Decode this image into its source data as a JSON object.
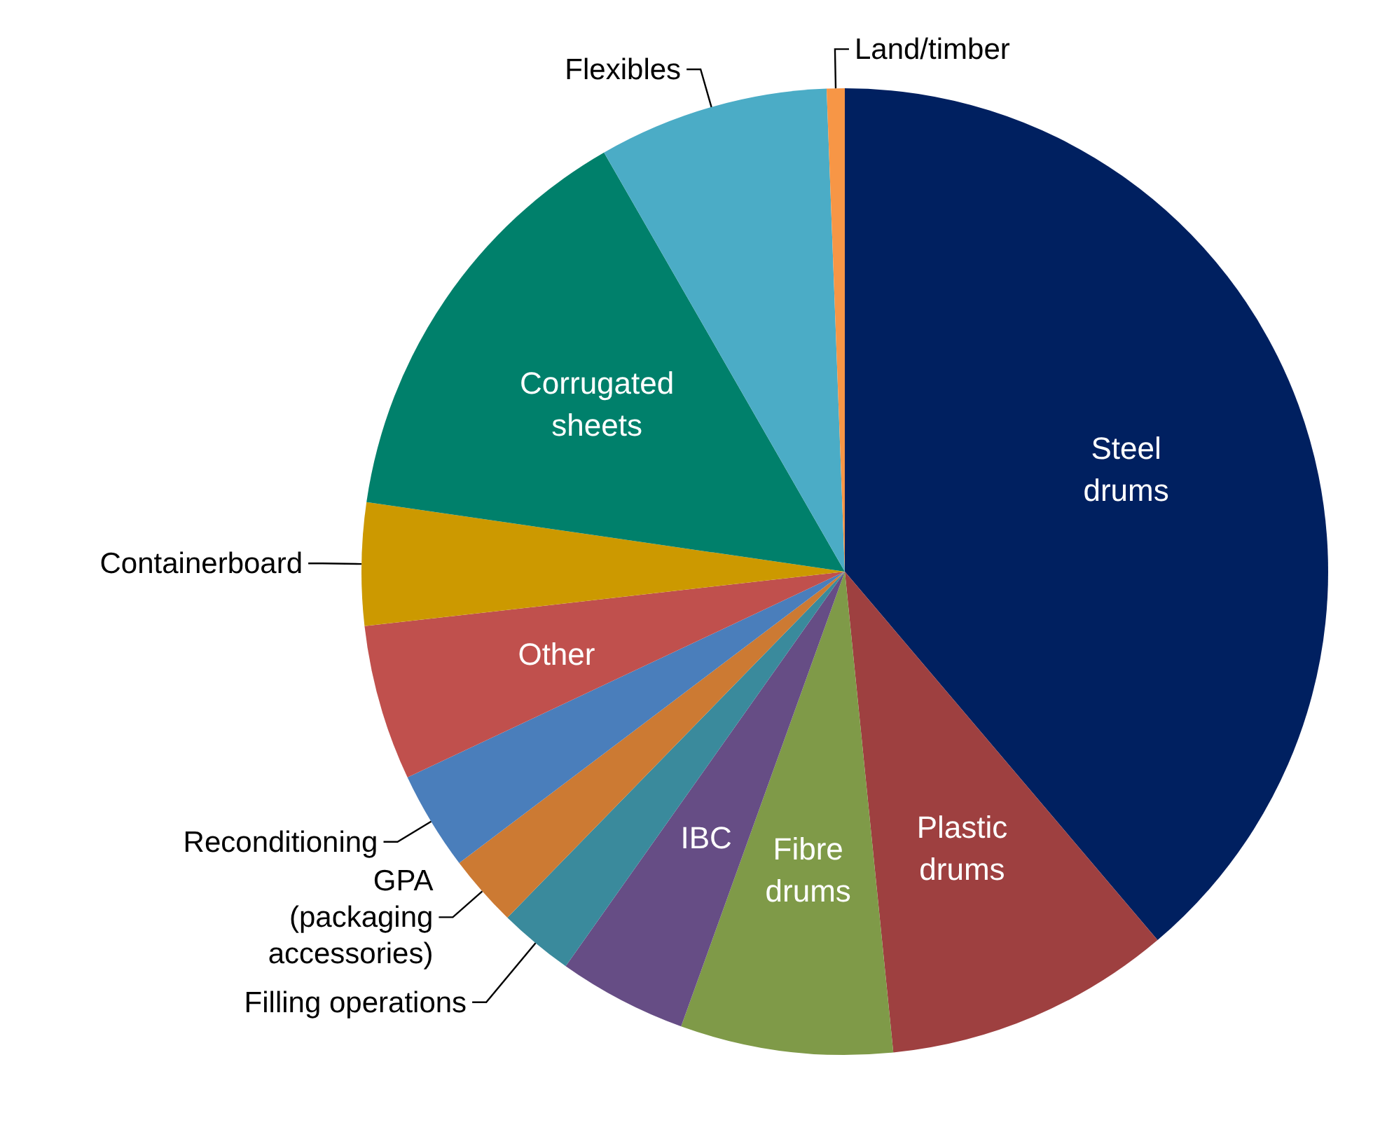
{
  "chart_data": {
    "type": "pie",
    "categories": [
      "Steel drums",
      "Plastic drums",
      "Fibre drums",
      "IBC",
      "Filling operations",
      "GPA (packaging accessories)",
      "Reconditioning",
      "Other",
      "Containerboard",
      "Corrugated sheets",
      "Flexibles",
      "Land/timber"
    ],
    "values": [
      38.8,
      9.6,
      7.1,
      4.3,
      2.5,
      2.4,
      3.3,
      5.2,
      4.1,
      14.4,
      7.7,
      0.6
    ],
    "colors": [
      "#002060",
      "#9e4040",
      "#7f9a48",
      "#664d85",
      "#3a8a9c",
      "#cc7a33",
      "#4a7ebb",
      "#c0504d",
      "#cc9900",
      "#00806b",
      "#4bacc6",
      "#f79646"
    ]
  }
}
